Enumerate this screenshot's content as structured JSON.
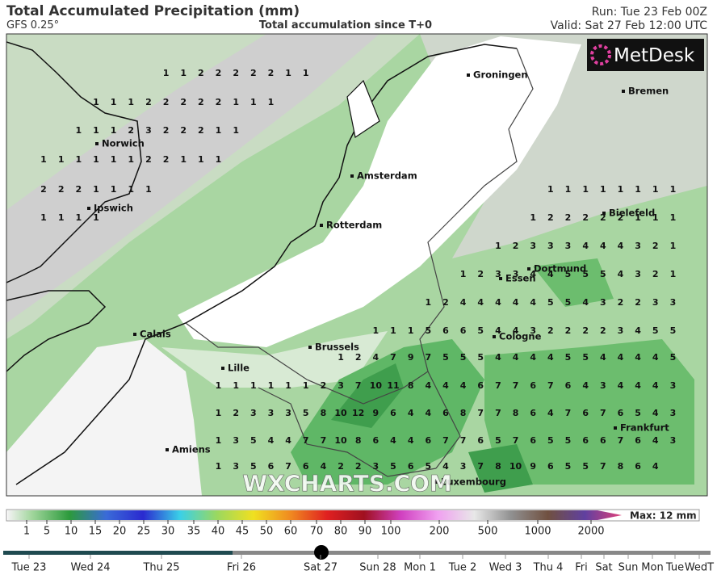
{
  "header": {
    "title": "Total Accumulated Precipitation (mm)",
    "model": "GFS 0.25°",
    "subtitle": "Total accumulation since T+0",
    "run": "Run: Tue 23 Feb 00Z",
    "valid": "Valid: Sat 27 Feb 12:00 UTC"
  },
  "logo": "MetDesk",
  "watermark": "WXCHARTS.COM",
  "cities": [
    "Groningen",
    "Bremen",
    "Norwich",
    "Amsterdam",
    "Bielefeld",
    "Ipswich",
    "Rotterdam",
    "Dortmund",
    "Essen",
    "Calais",
    "Cologne",
    "Brussels",
    "Lille",
    "Frankfurt",
    "Amiens",
    "Luxembourg"
  ],
  "grid": [
    [
      null,
      null,
      null,
      null,
      null,
      null,
      null,
      1,
      1,
      2,
      2,
      2,
      2,
      2,
      1,
      1,
      null,
      null,
      null,
      null,
      null,
      null,
      null,
      null,
      null,
      null,
      null,
      null,
      null,
      null,
      null,
      null,
      null,
      null,
      null,
      null,
      null
    ],
    [
      null,
      null,
      null,
      1,
      1,
      1,
      2,
      2,
      2,
      2,
      2,
      1,
      1,
      1,
      null,
      null,
      null,
      null,
      null,
      null,
      null,
      null,
      null,
      null,
      null,
      null,
      null,
      null,
      null,
      null,
      null,
      null,
      null,
      null,
      null,
      null,
      null
    ],
    [
      null,
      null,
      1,
      1,
      1,
      2,
      3,
      2,
      2,
      2,
      1,
      1,
      null,
      null,
      null,
      null,
      null,
      null,
      null,
      null,
      null,
      null,
      null,
      null,
      null,
      null,
      null,
      null,
      null,
      null,
      null,
      null,
      null,
      null,
      null,
      null,
      null
    ],
    [
      1,
      1,
      1,
      1,
      1,
      1,
      2,
      2,
      1,
      1,
      1,
      null,
      null,
      null,
      null,
      null,
      null,
      null,
      null,
      null,
      null,
      null,
      null,
      null,
      null,
      null,
      null,
      null,
      null,
      null,
      null,
      null,
      null,
      null,
      null,
      null,
      null
    ],
    [
      2,
      2,
      2,
      1,
      1,
      1,
      1,
      null,
      null,
      null,
      null,
      null,
      null,
      null,
      null,
      null,
      null,
      null,
      null,
      null,
      null,
      null,
      null,
      null,
      null,
      null,
      null,
      null,
      null,
      1,
      1,
      1,
      1,
      1,
      1,
      1,
      1
    ],
    [
      1,
      1,
      1,
      1,
      null,
      null,
      null,
      null,
      null,
      null,
      null,
      null,
      null,
      null,
      null,
      null,
      null,
      null,
      null,
      null,
      null,
      null,
      null,
      null,
      null,
      null,
      null,
      null,
      1,
      2,
      2,
      2,
      2,
      2,
      1,
      1,
      1
    ],
    [
      null,
      null,
      null,
      null,
      null,
      null,
      null,
      null,
      null,
      null,
      null,
      null,
      null,
      null,
      null,
      null,
      null,
      null,
      null,
      null,
      null,
      null,
      null,
      null,
      null,
      null,
      1,
      2,
      3,
      3,
      3,
      4,
      4,
      4,
      3,
      2,
      1
    ],
    [
      null,
      null,
      null,
      null,
      null,
      null,
      null,
      null,
      null,
      null,
      null,
      null,
      null,
      null,
      null,
      null,
      null,
      null,
      null,
      null,
      null,
      null,
      null,
      null,
      1,
      2,
      3,
      3,
      4,
      4,
      5,
      5,
      5,
      4,
      3,
      2,
      1
    ],
    [
      null,
      null,
      null,
      null,
      null,
      null,
      null,
      null,
      null,
      null,
      null,
      null,
      null,
      null,
      null,
      null,
      null,
      null,
      null,
      null,
      null,
      null,
      1,
      2,
      4,
      4,
      4,
      4,
      4,
      5,
      5,
      4,
      3,
      2,
      2,
      3,
      3
    ],
    [
      null,
      null,
      null,
      null,
      null,
      null,
      null,
      null,
      null,
      null,
      null,
      null,
      null,
      null,
      null,
      null,
      null,
      null,
      null,
      1,
      1,
      1,
      5,
      6,
      6,
      5,
      4,
      4,
      3,
      2,
      2,
      2,
      2,
      3,
      4,
      5,
      5
    ],
    [
      null,
      null,
      null,
      null,
      null,
      null,
      null,
      null,
      null,
      null,
      null,
      null,
      null,
      null,
      null,
      null,
      null,
      1,
      2,
      4,
      7,
      9,
      7,
      5,
      5,
      5,
      4,
      4,
      4,
      4,
      5,
      5,
      4,
      4,
      4,
      4,
      5
    ],
    [
      null,
      null,
      null,
      null,
      null,
      null,
      null,
      null,
      null,
      null,
      1,
      1,
      1,
      1,
      1,
      1,
      2,
      3,
      7,
      10,
      11,
      8,
      4,
      4,
      4,
      6,
      7,
      7,
      6,
      7,
      6,
      4,
      3,
      4,
      4,
      4,
      3
    ],
    [
      null,
      null,
      null,
      null,
      null,
      null,
      null,
      null,
      null,
      null,
      1,
      2,
      3,
      3,
      3,
      5,
      8,
      10,
      12,
      9,
      6,
      4,
      4,
      6,
      8,
      7,
      7,
      8,
      6,
      4,
      7,
      6,
      7,
      6,
      5,
      4,
      3
    ],
    [
      null,
      null,
      null,
      null,
      null,
      null,
      null,
      null,
      null,
      null,
      1,
      3,
      5,
      4,
      4,
      7,
      7,
      10,
      8,
      6,
      4,
      4,
      6,
      7,
      7,
      6,
      5,
      7,
      6,
      5,
      5,
      6,
      6,
      7,
      6,
      4,
      3
    ],
    [
      null,
      null,
      null,
      null,
      null,
      null,
      null,
      null,
      null,
      null,
      1,
      3,
      5,
      6,
      7,
      6,
      4,
      2,
      2,
      3,
      5,
      6,
      5,
      4,
      3,
      7,
      8,
      10,
      9,
      6,
      5,
      5,
      7,
      8,
      6,
      4,
      null
    ]
  ],
  "colorbar": {
    "labels": [
      1,
      5,
      10,
      15,
      20,
      25,
      30,
      35,
      40,
      45,
      50,
      60,
      70,
      80,
      90,
      100,
      200,
      500,
      1000,
      2000
    ],
    "max": "Max: 12 mm"
  },
  "timeline": [
    "Tue 23",
    "Wed 24",
    "Thu 25",
    "Fri 26",
    "Sat 27",
    "Sun 28",
    "Mon 1",
    "Tue 2",
    "Wed 3",
    "Thu 4",
    "Fri",
    "Sat",
    "Sun",
    "Mon",
    "Tue",
    "WedT"
  ]
}
